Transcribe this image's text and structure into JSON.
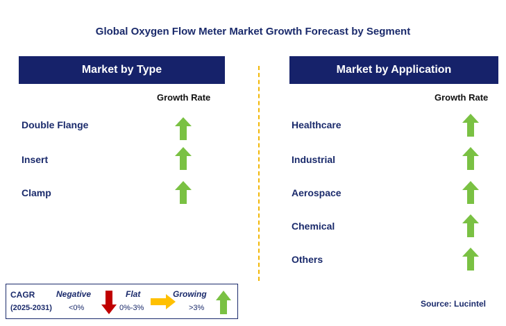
{
  "title": "Global Oxygen Flow Meter Market Growth Forecast by Segment",
  "left_panel": {
    "header": "Market by Type",
    "growth_label": "Growth Rate",
    "items": [
      {
        "label": "Double Flange",
        "trend": "growing"
      },
      {
        "label": "Insert",
        "trend": "growing"
      },
      {
        "label": "Clamp",
        "trend": "growing"
      }
    ]
  },
  "right_panel": {
    "header": "Market by Application",
    "growth_label": "Growth Rate",
    "items": [
      {
        "label": "Healthcare",
        "trend": "growing"
      },
      {
        "label": "Industrial",
        "trend": "growing"
      },
      {
        "label": "Aerospace",
        "trend": "growing"
      },
      {
        "label": "Chemical",
        "trend": "growing"
      },
      {
        "label": "Others",
        "trend": "growing"
      }
    ]
  },
  "legend": {
    "cagr_label": "CAGR",
    "period": "(2025-2031)",
    "negative": {
      "label": "Negative",
      "range": "<0%",
      "icon": "arrow-down-icon",
      "color": "#c00000"
    },
    "flat": {
      "label": "Flat",
      "range": "0%-3%",
      "icon": "arrow-right-icon",
      "color": "#ffc000"
    },
    "growing": {
      "label": "Growing",
      "range": ">3%",
      "icon": "arrow-up-icon",
      "color": "#7ac143"
    }
  },
  "source": "Source: Lucintel",
  "colors": {
    "header_bg": "#16226a",
    "text": "#1a2a6b",
    "divider": "#f2b705",
    "growing_arrow": "#7ac143"
  }
}
